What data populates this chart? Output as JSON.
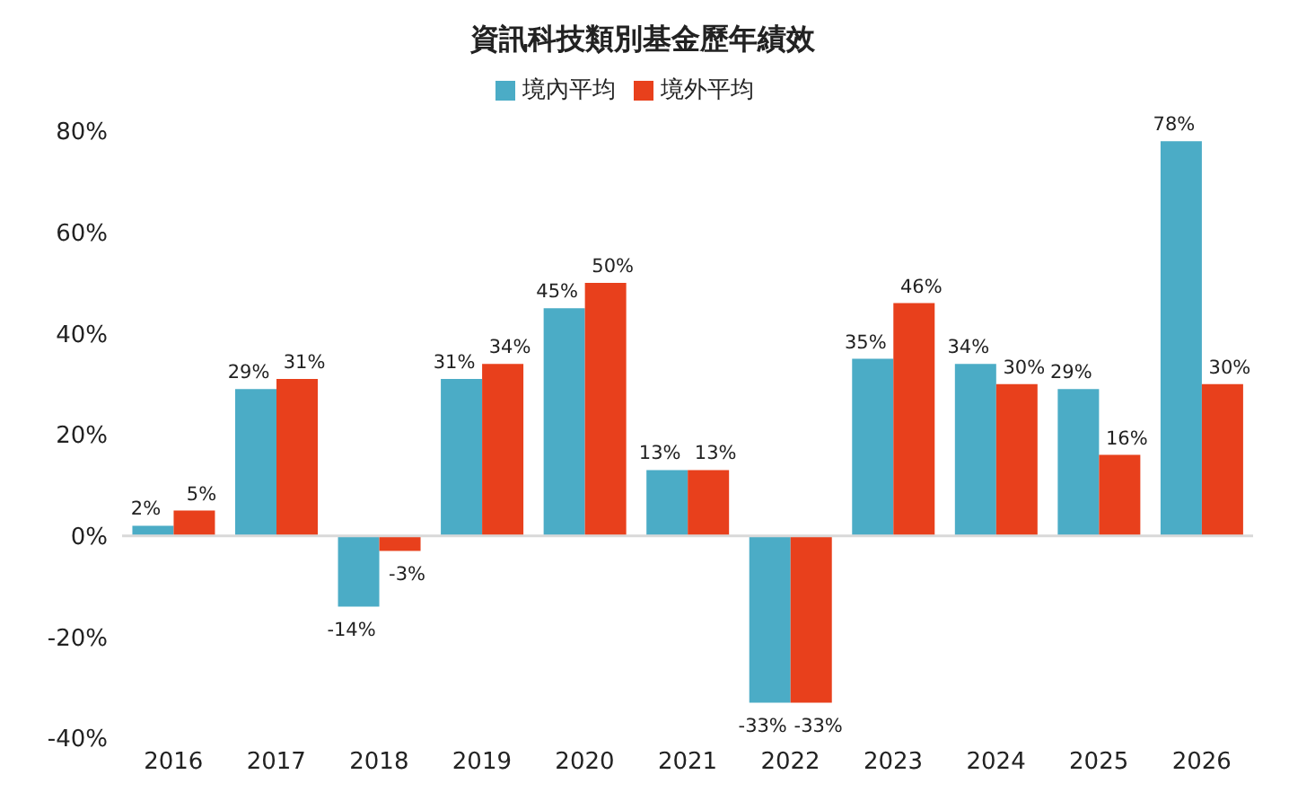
{
  "chart_data": {
    "type": "bar",
    "title": "資訊科技類別基金歷年績效",
    "categories": [
      "2016",
      "2017",
      "2018",
      "2019",
      "2020",
      "2021",
      "2022",
      "2023",
      "2024",
      "2025",
      "2026"
    ],
    "series": [
      {
        "name": "境內平均",
        "color": "#4bacc6",
        "values": [
          2,
          29,
          -14,
          31,
          45,
          13,
          -33,
          35,
          34,
          29,
          78
        ],
        "value_labels": [
          "2%",
          "29%",
          "-14%",
          "31%",
          "45%",
          "13%",
          "-33%",
          "35%",
          "34%",
          "29%",
          "78%"
        ]
      },
      {
        "name": "境外平均",
        "color": "#e8401c",
        "values": [
          5,
          31,
          -3,
          34,
          50,
          13,
          -33,
          46,
          30,
          16,
          30
        ],
        "value_labels": [
          "5%",
          "31%",
          "-3%",
          "34%",
          "50%",
          "13%",
          "-33%",
          "46%",
          "30%",
          "16%",
          "30%"
        ]
      }
    ],
    "ylim": [
      -40,
      80
    ],
    "yticks": [
      {
        "value": -40,
        "label": "-40%"
      },
      {
        "value": -20,
        "label": "-20%"
      },
      {
        "value": 0,
        "label": "0%"
      },
      {
        "value": 20,
        "label": "20%"
      },
      {
        "value": 40,
        "label": "40%"
      },
      {
        "value": 60,
        "label": "60%"
      },
      {
        "value": 80,
        "label": "80%"
      }
    ],
    "ref_lines": [
      {
        "axis": "y",
        "value": 0,
        "color": "#d9d9d9"
      }
    ],
    "grid": false,
    "legend": "top"
  }
}
